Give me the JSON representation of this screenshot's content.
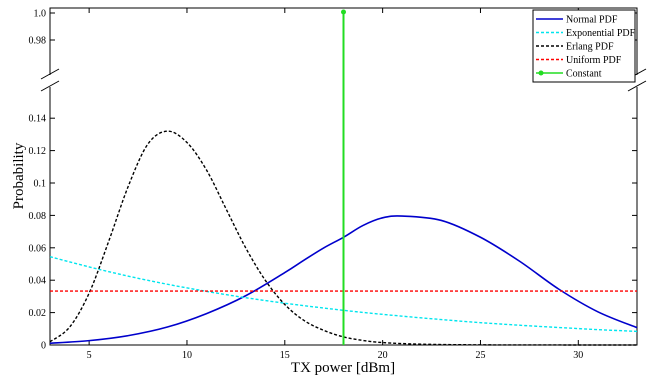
{
  "chart_data": {
    "type": "line",
    "xlabel": "TX power [dBm]",
    "ylabel": "Probability",
    "xlim": [
      3,
      33
    ],
    "ylim_lower": [
      0,
      0.15
    ],
    "ylim_upper": [
      0.96,
      1.0
    ],
    "broken_y_axis": true,
    "x_ticks": [
      5,
      10,
      15,
      20,
      25,
      30
    ],
    "y_ticks_lower": [
      0,
      0.02,
      0.04,
      0.06,
      0.08,
      0.1,
      0.12,
      0.14
    ],
    "y_ticks_upper": [
      0.98,
      1.0
    ],
    "x_tick_labels": [
      "5",
      "10",
      "15",
      "20",
      "25",
      "30"
    ],
    "y_tick_labels_lower": [
      "0",
      "0.02",
      "0.04",
      "0.06",
      "0.08",
      "0.1",
      "0.12",
      "0.14"
    ],
    "y_tick_labels_upper": [
      "0.98",
      "1.0"
    ],
    "legend_position": "top-right",
    "grid": false,
    "series": [
      {
        "name": "Normal PDF",
        "style": "solid",
        "color": "#0000cc",
        "x": [
          3,
          5,
          7,
          9,
          11,
          13,
          15,
          16,
          17,
          18,
          19,
          20,
          21,
          23,
          25,
          27,
          29,
          31,
          33
        ],
        "y": [
          0.0011,
          0.0027,
          0.0058,
          0.0111,
          0.0194,
          0.0304,
          0.0447,
          0.0525,
          0.06,
          0.0665,
          0.0738,
          0.0785,
          0.0796,
          0.0769,
          0.0665,
          0.0517,
          0.0345,
          0.0205,
          0.0107
        ]
      },
      {
        "name": "Exponential PDF",
        "style": "dashed",
        "color": "#00e5ee",
        "x": [
          3,
          5,
          7,
          9,
          11,
          13,
          15,
          17,
          19,
          21,
          23,
          25,
          27,
          29,
          31,
          33
        ],
        "y": [
          0.0545,
          0.0482,
          0.0425,
          0.0375,
          0.0331,
          0.0292,
          0.0258,
          0.0228,
          0.0201,
          0.0178,
          0.0157,
          0.0138,
          0.0122,
          0.0108,
          0.0095,
          0.0084
        ]
      },
      {
        "name": "Erlang PDF",
        "style": "dashed",
        "color": "#000000",
        "x": [
          3,
          4,
          5,
          6,
          7,
          8,
          9,
          10,
          11,
          12,
          13,
          14,
          15,
          16,
          17,
          18,
          19,
          20,
          22,
          25,
          30,
          33
        ],
        "y": [
          0.002,
          0.011,
          0.032,
          0.064,
          0.098,
          0.124,
          0.132,
          0.125,
          0.108,
          0.084,
          0.06,
          0.04,
          0.025,
          0.015,
          0.009,
          0.005,
          0.0028,
          0.0015,
          0.0005,
          0.0001,
          0.0,
          0.0
        ]
      },
      {
        "name": "Uniform PDF",
        "style": "dashed",
        "color": "#ff0000",
        "x": [
          3,
          33
        ],
        "y": [
          0.0333,
          0.0333
        ]
      },
      {
        "name": "Constant",
        "style": "solid-marker",
        "color": "#22dd22",
        "x": [
          18,
          18
        ],
        "y": [
          0,
          1.0
        ]
      }
    ]
  }
}
